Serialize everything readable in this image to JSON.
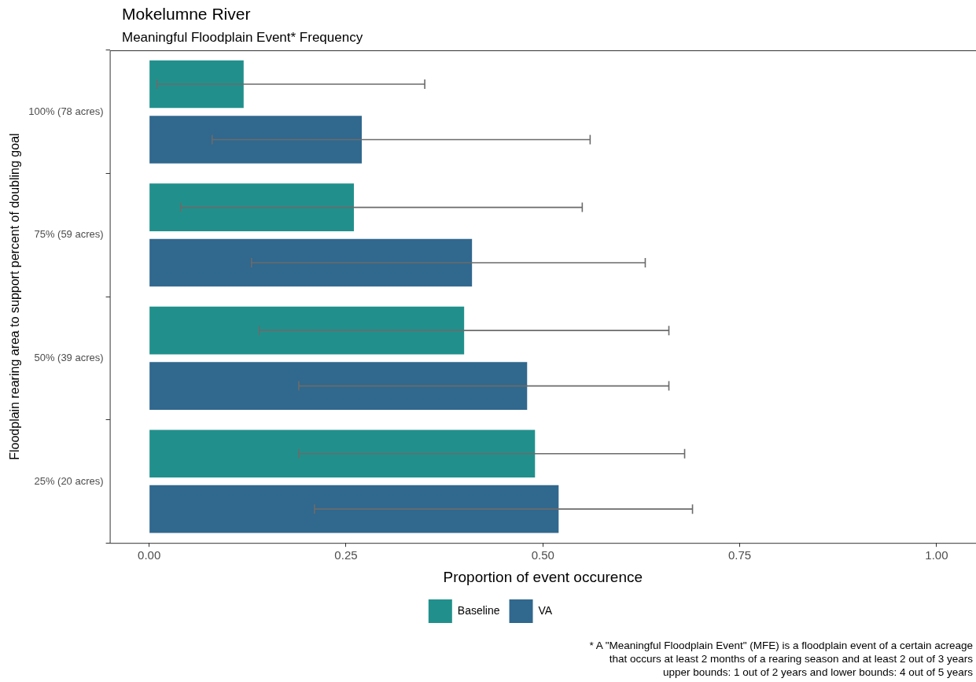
{
  "chart_data": {
    "type": "bar",
    "orientation": "horizontal",
    "title": "Mokelumne River",
    "subtitle": "Meaningful Floodplain Event* Frequency",
    "xlabel": "Proportion of event occurence",
    "ylabel": "Floodplain rearing area to support percent of doubling goal",
    "categories": [
      "100% (78 acres)",
      "75% (59 acres)",
      "50% (39 acres)",
      "25% (20 acres)"
    ],
    "series": [
      {
        "name": "Baseline",
        "color": "#21908c",
        "values": [
          0.12,
          0.26,
          0.4,
          0.49
        ],
        "errors": [
          [
            0.01,
            0.35
          ],
          [
            0.04,
            0.55
          ],
          [
            0.14,
            0.66
          ],
          [
            0.19,
            0.68
          ]
        ]
      },
      {
        "name": "VA",
        "color": "#31688e",
        "values": [
          0.27,
          0.41,
          0.48,
          0.52
        ],
        "errors": [
          [
            0.08,
            0.56
          ],
          [
            0.13,
            0.63
          ],
          [
            0.19,
            0.66
          ],
          [
            0.21,
            0.69
          ]
        ]
      }
    ],
    "xlim": [
      -0.05,
      1.05
    ],
    "xticks": [
      {
        "value": 0,
        "label": "0.00"
      },
      {
        "value": 0.25,
        "label": "0.25"
      },
      {
        "value": 0.5,
        "label": "0.50"
      },
      {
        "value": 0.75,
        "label": "0.75"
      },
      {
        "value": 1,
        "label": "1.00"
      }
    ],
    "grid": false,
    "legend": "bottom",
    "annotations": [
      "* A \"Meaningful Floodplain Event\" (MFE) is a floodplain event of a certain acreage",
      "that occurs at least 2 months of a rearing season and at least 2 out of 3 years",
      "upper bounds: 1 out of 2 years and lower bounds: 4 out of 5 years"
    ]
  }
}
